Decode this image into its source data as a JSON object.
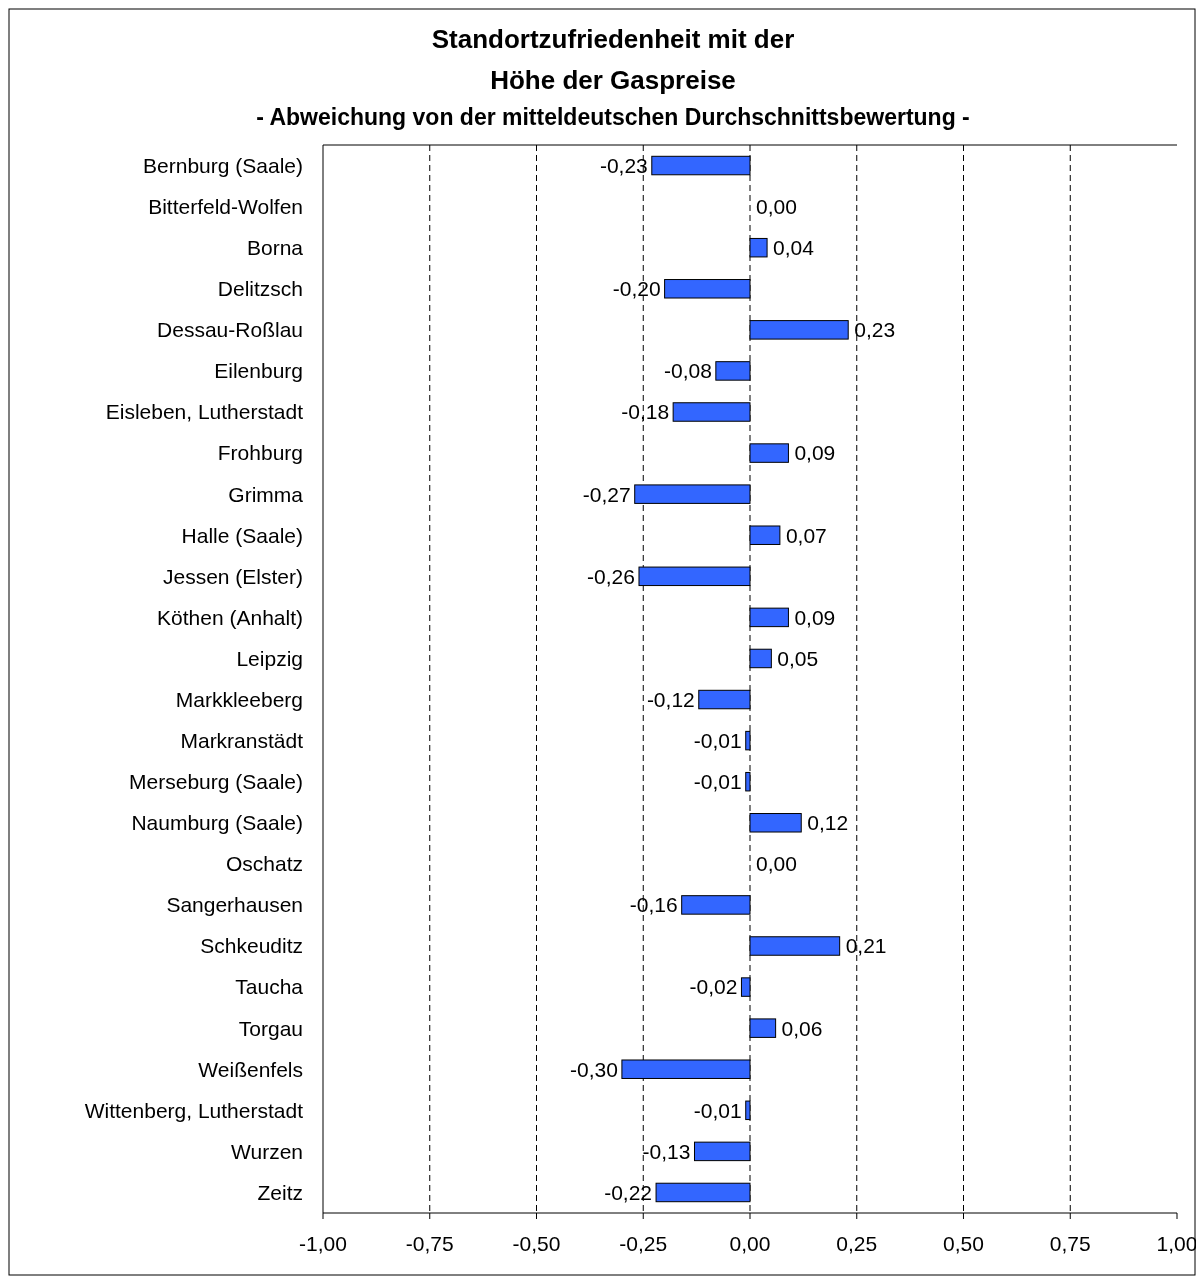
{
  "chart_data": {
    "type": "bar",
    "orientation": "horizontal",
    "title": "Standortzufriedenheit mit der\nHöhe der Gaspreise",
    "subtitle": "- Abweichung von der mitteldeutschen Durchschnittsbewertung -",
    "categories": [
      "Bernburg (Saale)",
      "Bitterfeld-Wolfen",
      "Borna",
      "Delitzsch",
      "Dessau-Roßlau",
      "Eilenburg",
      "Eisleben, Lutherstadt",
      "Frohburg",
      "Grimma",
      "Halle (Saale)",
      "Jessen (Elster)",
      "Köthen (Anhalt)",
      "Leipzig",
      "Markkleeberg",
      "Markranstädt",
      "Merseburg (Saale)",
      "Naumburg (Saale)",
      "Oschatz",
      "Sangerhausen",
      "Schkeuditz",
      "Taucha",
      "Torgau",
      "Weißenfels",
      "Wittenberg, Lutherstadt",
      "Wurzen",
      "Zeitz"
    ],
    "values": [
      -0.23,
      0,
      0.04,
      -0.2,
      0.23,
      -0.08,
      -0.18,
      0.09,
      -0.27,
      0.07,
      -0.26,
      0.09,
      0.05,
      -0.12,
      -0.01,
      -0.01,
      0.12,
      0,
      -0.16,
      0.21,
      -0.02,
      0.06,
      -0.3,
      -0.01,
      -0.13,
      -0.22
    ],
    "value_labels": [
      "-0,23",
      "0,00",
      "0,04",
      "-0,20",
      "0,23",
      "-0,08",
      "-0,18",
      "0,09",
      "-0,27",
      "0,07",
      "-0,26",
      "0,09",
      "0,05",
      "-0,12",
      "-0,01",
      "-0,01",
      "0,12",
      "0,00",
      "-0,16",
      "0,21",
      "-0,02",
      "0,06",
      "-0,30",
      "-0,01",
      "-0,13",
      "-0,22"
    ],
    "color": "#3366ff",
    "xlim": [
      -1,
      1
    ],
    "xticks": [
      {
        "value": -1,
        "label": "-1,00"
      },
      {
        "value": -0.75,
        "label": "-0,75"
      },
      {
        "value": -0.5,
        "label": "-0,50"
      },
      {
        "value": -0.25,
        "label": "-0,25"
      },
      {
        "value": 0,
        "label": "0,00"
      },
      {
        "value": 0.25,
        "label": "0,25"
      },
      {
        "value": 0.5,
        "label": "0,50"
      },
      {
        "value": 0.75,
        "label": "0,75"
      },
      {
        "value": 1,
        "label": "1,00"
      }
    ],
    "grid": "x"
  }
}
